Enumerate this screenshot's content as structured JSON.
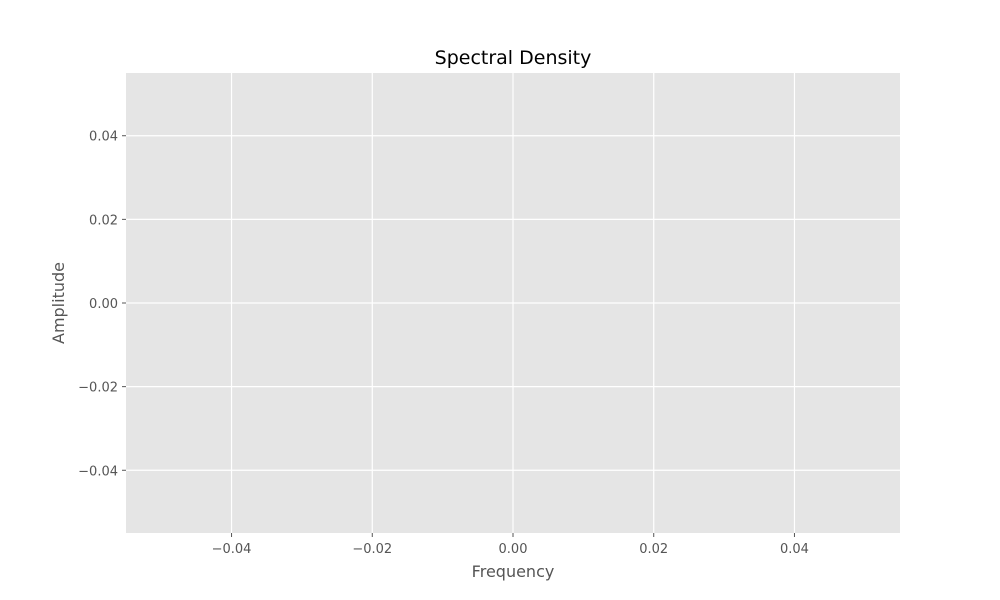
{
  "chart_data": {
    "type": "line",
    "title": "Spectral Density",
    "xlabel": "Frequency",
    "ylabel": "Amplitude",
    "xlim": [
      -0.055,
      0.055
    ],
    "ylim": [
      -0.055,
      0.055
    ],
    "xticks": [
      -0.04,
      -0.02,
      0.0,
      0.02,
      0.04
    ],
    "yticks": [
      -0.04,
      -0.02,
      0.0,
      0.02,
      0.04
    ],
    "xtick_labels": [
      "−0.04",
      "−0.02",
      "0.00",
      "0.02",
      "0.04"
    ],
    "ytick_labels": [
      "−0.04",
      "−0.02",
      "0.00",
      "0.02",
      "0.04"
    ],
    "grid": true,
    "series": [],
    "colors": {
      "plot_background": "#e5e5e5",
      "grid": "#ffffff",
      "text": "#555555",
      "title": "#000000"
    }
  }
}
